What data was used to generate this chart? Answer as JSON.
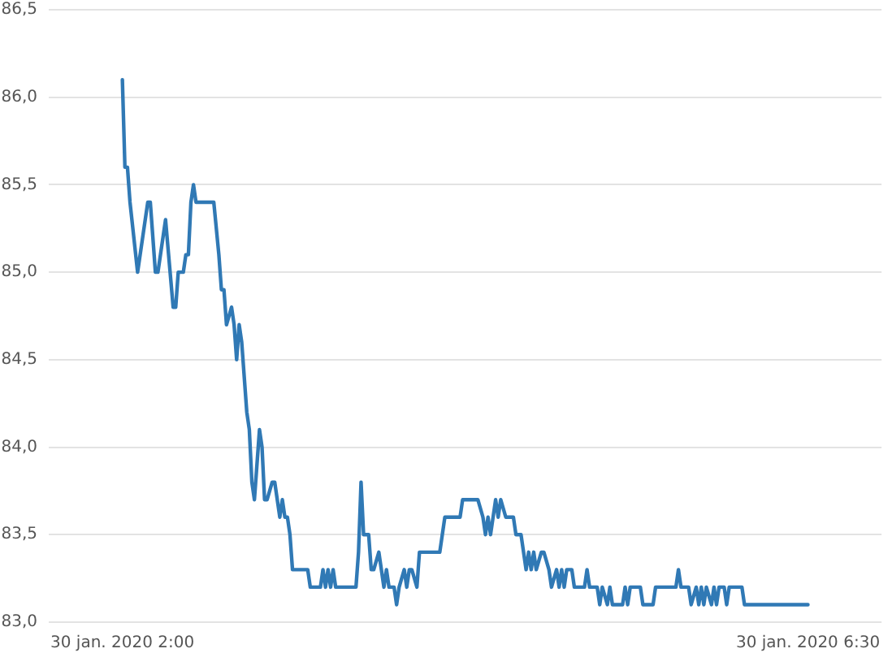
{
  "chart_data": {
    "type": "line",
    "x": [
      "2020-01-30T02:00",
      "2020-01-30T02:01",
      "2020-01-30T02:02",
      "2020-01-30T02:03",
      "2020-01-30T02:06",
      "2020-01-30T02:10",
      "2020-01-30T02:11",
      "2020-01-30T02:13",
      "2020-01-30T02:14",
      "2020-01-30T02:17",
      "2020-01-30T02:20",
      "2020-01-30T02:21",
      "2020-01-30T02:22",
      "2020-01-30T02:24",
      "2020-01-30T02:25",
      "2020-01-30T02:26",
      "2020-01-30T02:27",
      "2020-01-30T02:28",
      "2020-01-30T02:29",
      "2020-01-30T02:36",
      "2020-01-30T02:38",
      "2020-01-30T02:39",
      "2020-01-30T02:40",
      "2020-01-30T02:41",
      "2020-01-30T02:43",
      "2020-01-30T02:44",
      "2020-01-30T02:45",
      "2020-01-30T02:46",
      "2020-01-30T02:47",
      "2020-01-30T02:49",
      "2020-01-30T02:50",
      "2020-01-30T02:51",
      "2020-01-30T02:52",
      "2020-01-30T02:54",
      "2020-01-30T02:55",
      "2020-01-30T02:56",
      "2020-01-30T02:57",
      "2020-01-30T02:59",
      "2020-01-30T03:00",
      "2020-01-30T03:02",
      "2020-01-30T03:03",
      "2020-01-30T03:04",
      "2020-01-30T03:05",
      "2020-01-30T03:06",
      "2020-01-30T03:07",
      "2020-01-30T03:13",
      "2020-01-30T03:14",
      "2020-01-30T03:18",
      "2020-01-30T03:19",
      "2020-01-30T03:20",
      "2020-01-30T03:21",
      "2020-01-30T03:22",
      "2020-01-30T03:23",
      "2020-01-30T03:24",
      "2020-01-30T03:32",
      "2020-01-30T03:33",
      "2020-01-30T03:34",
      "2020-01-30T03:35",
      "2020-01-30T03:37",
      "2020-01-30T03:38",
      "2020-01-30T03:39",
      "2020-01-30T03:41",
      "2020-01-30T03:42",
      "2020-01-30T03:43",
      "2020-01-30T03:44",
      "2020-01-30T03:45",
      "2020-01-30T03:47",
      "2020-01-30T03:48",
      "2020-01-30T03:49",
      "2020-01-30T03:51",
      "2020-01-30T03:52",
      "2020-01-30T03:53",
      "2020-01-30T03:54",
      "2020-01-30T03:56",
      "2020-01-30T03:57",
      "2020-01-30T04:05",
      "2020-01-30T04:07",
      "2020-01-30T04:13",
      "2020-01-30T04:14",
      "2020-01-30T04:20",
      "2020-01-30T04:22",
      "2020-01-30T04:23",
      "2020-01-30T04:24",
      "2020-01-30T04:25",
      "2020-01-30T04:26",
      "2020-01-30T04:27",
      "2020-01-30T04:28",
      "2020-01-30T04:29",
      "2020-01-30T04:31",
      "2020-01-30T04:34",
      "2020-01-30T04:35",
      "2020-01-30T04:37",
      "2020-01-30T04:39",
      "2020-01-30T04:40",
      "2020-01-30T04:41",
      "2020-01-30T04:42",
      "2020-01-30T04:43",
      "2020-01-30T04:45",
      "2020-01-30T04:46",
      "2020-01-30T04:48",
      "2020-01-30T04:49",
      "2020-01-30T04:51",
      "2020-01-30T04:52",
      "2020-01-30T04:53",
      "2020-01-30T04:54",
      "2020-01-30T04:55",
      "2020-01-30T04:57",
      "2020-01-30T04:58",
      "2020-01-30T05:02",
      "2020-01-30T05:03",
      "2020-01-30T05:04",
      "2020-01-30T05:07",
      "2020-01-30T05:08",
      "2020-01-30T05:09",
      "2020-01-30T05:11",
      "2020-01-30T05:12",
      "2020-01-30T05:13",
      "2020-01-30T05:17",
      "2020-01-30T05:18",
      "2020-01-30T05:19",
      "2020-01-30T05:20",
      "2020-01-30T05:24",
      "2020-01-30T05:25",
      "2020-01-30T05:29",
      "2020-01-30T05:30",
      "2020-01-30T05:38",
      "2020-01-30T05:39",
      "2020-01-30T05:40",
      "2020-01-30T05:43",
      "2020-01-30T05:44",
      "2020-01-30T05:46",
      "2020-01-30T05:47",
      "2020-01-30T05:48",
      "2020-01-30T05:49",
      "2020-01-30T05:50",
      "2020-01-30T05:52",
      "2020-01-30T05:53",
      "2020-01-30T05:54",
      "2020-01-30T05:55",
      "2020-01-30T05:57",
      "2020-01-30T05:58",
      "2020-01-30T05:59",
      "2020-01-30T06:04",
      "2020-01-30T06:05",
      "2020-01-30T06:30"
    ],
    "series": [
      {
        "color": "#3079b5",
        "values": [
          86.1,
          85.6,
          85.6,
          85.4,
          85.0,
          85.4,
          85.4,
          85.0,
          85.0,
          85.3,
          84.8,
          84.8,
          85.0,
          85.0,
          85.1,
          85.1,
          85.4,
          85.5,
          85.4,
          85.4,
          85.1,
          84.9,
          84.9,
          84.7,
          84.8,
          84.7,
          84.5,
          84.7,
          84.6,
          84.2,
          84.1,
          83.8,
          83.7,
          84.1,
          84.0,
          83.7,
          83.7,
          83.8,
          83.8,
          83.6,
          83.7,
          83.6,
          83.6,
          83.5,
          83.3,
          83.3,
          83.2,
          83.2,
          83.3,
          83.2,
          83.3,
          83.2,
          83.3,
          83.2,
          83.2,
          83.4,
          83.8,
          83.5,
          83.5,
          83.3,
          83.3,
          83.4,
          83.3,
          83.2,
          83.3,
          83.2,
          83.2,
          83.1,
          83.2,
          83.3,
          83.2,
          83.3,
          83.3,
          83.2,
          83.4,
          83.4,
          83.6,
          83.6,
          83.7,
          83.7,
          83.6,
          83.5,
          83.6,
          83.5,
          83.6,
          83.7,
          83.6,
          83.7,
          83.6,
          83.6,
          83.5,
          83.5,
          83.3,
          83.4,
          83.3,
          83.4,
          83.3,
          83.4,
          83.4,
          83.3,
          83.2,
          83.3,
          83.2,
          83.3,
          83.2,
          83.3,
          83.3,
          83.2,
          83.2,
          83.3,
          83.2,
          83.2,
          83.1,
          83.2,
          83.1,
          83.2,
          83.1,
          83.1,
          83.2,
          83.1,
          83.2,
          83.2,
          83.1,
          83.1,
          83.2,
          83.2,
          83.3,
          83.2,
          83.2,
          83.1,
          83.2,
          83.1,
          83.2,
          83.1,
          83.2,
          83.1,
          83.2,
          83.1,
          83.2,
          83.2,
          83.1,
          83.2,
          83.2,
          83.1,
          83.1
        ]
      }
    ],
    "xlim": [
      "2020-01-30T01:31",
      "2020-01-30T06:59"
    ],
    "xticks": [
      {
        "value": "2020-01-30T02:00",
        "label": "30 jan. 2020 2:00"
      },
      {
        "value": "2020-01-30T06:30",
        "label": "30 jan. 2020 6:30"
      }
    ],
    "ylim": [
      83.0,
      86.5
    ],
    "yticks": [
      {
        "value": 83.0,
        "label": "83,0"
      },
      {
        "value": 83.5,
        "label": "83,5"
      },
      {
        "value": 84.0,
        "label": "84,0"
      },
      {
        "value": 84.5,
        "label": "84,5"
      },
      {
        "value": 85.0,
        "label": "85,0"
      },
      {
        "value": 85.5,
        "label": "85,5"
      },
      {
        "value": 86.0,
        "label": "86,0"
      },
      {
        "value": 86.5,
        "label": "86,5"
      }
    ],
    "grid": "y",
    "marker": "none",
    "line_style": "solid"
  }
}
